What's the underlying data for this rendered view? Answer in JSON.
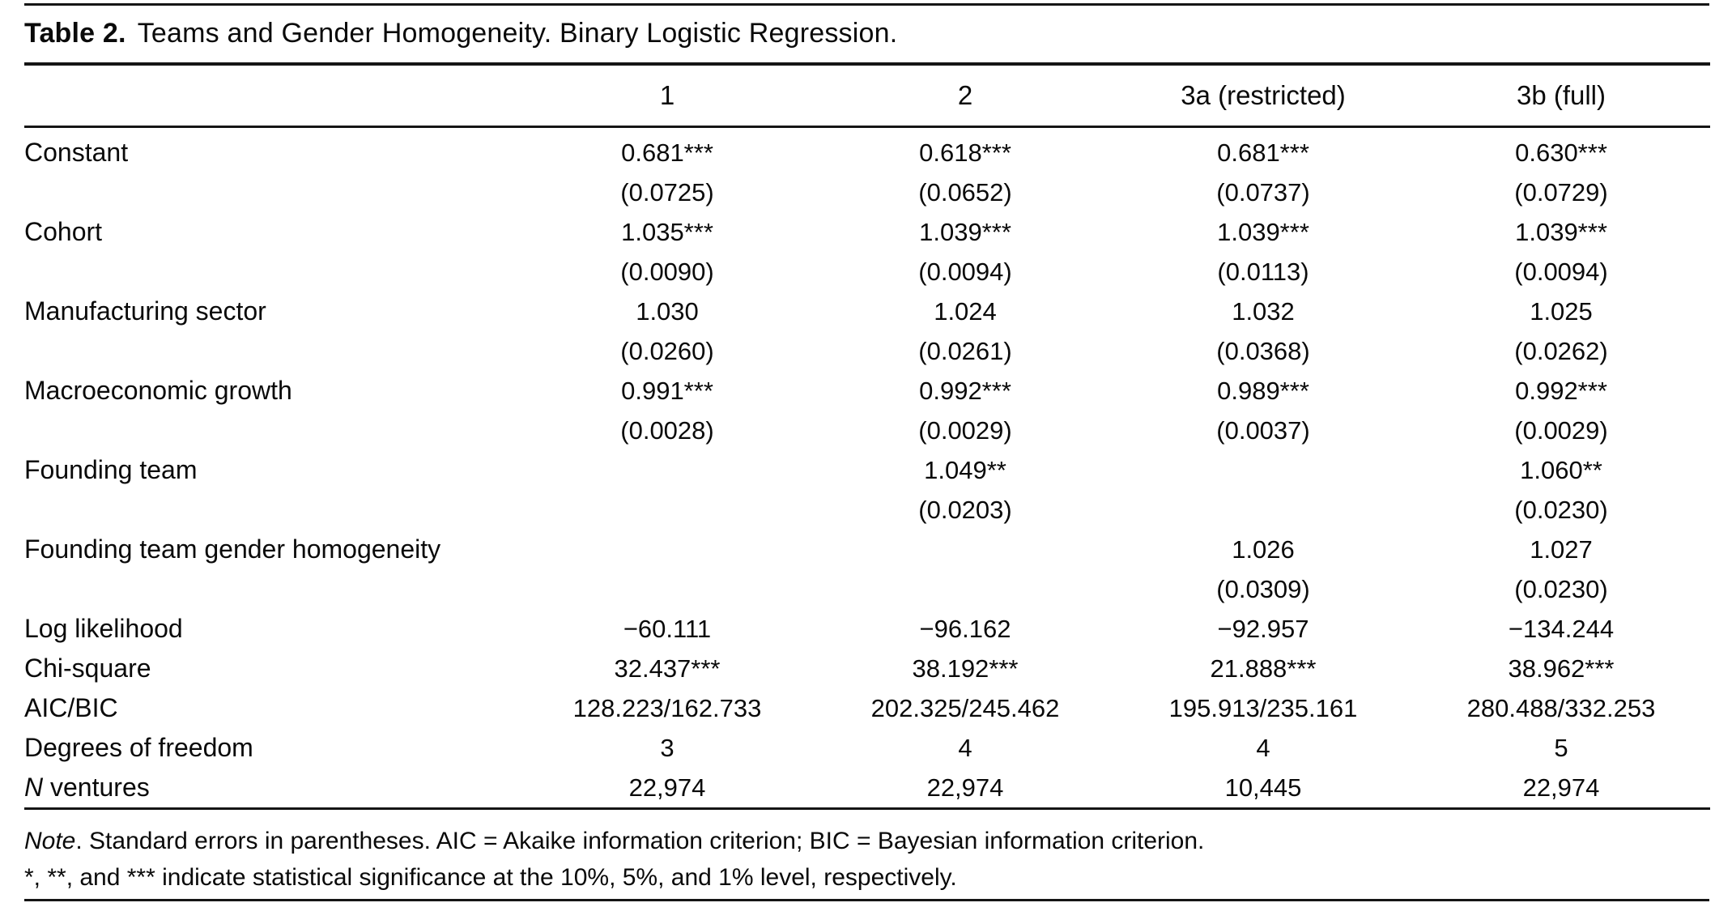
{
  "colors": {
    "background": "#ffffff",
    "text": "#0a0a0a",
    "rule": "#151515"
  },
  "table": {
    "title_label": "Table 2.",
    "title_text": "Teams and Gender Homogeneity. Binary Logistic Regression.",
    "columns": [
      "1",
      "2",
      "3a (restricted)",
      "3b (full)"
    ],
    "coef_rows": [
      {
        "label": "Constant",
        "est": [
          "0.681***",
          "0.618***",
          "0.681***",
          "0.630***"
        ],
        "se": [
          "(0.0725)",
          "(0.0652)",
          "(0.0737)",
          "(0.0729)"
        ]
      },
      {
        "label": "Cohort",
        "est": [
          "1.035***",
          "1.039***",
          "1.039***",
          "1.039***"
        ],
        "se": [
          "(0.0090)",
          "(0.0094)",
          "(0.0113)",
          "(0.0094)"
        ]
      },
      {
        "label": "Manufacturing sector",
        "est": [
          "1.030",
          "1.024",
          "1.032",
          "1.025"
        ],
        "se": [
          "(0.0260)",
          "(0.0261)",
          "(0.0368)",
          "(0.0262)"
        ]
      },
      {
        "label": "Macroeconomic growth",
        "est": [
          "0.991***",
          "0.992***",
          "0.989***",
          "0.992***"
        ],
        "se": [
          "(0.0028)",
          "(0.0029)",
          "(0.0037)",
          "(0.0029)"
        ]
      },
      {
        "label": "Founding team",
        "est": [
          "",
          "1.049**",
          "",
          "1.060**"
        ],
        "se": [
          "",
          "(0.0203)",
          "",
          "(0.0230)"
        ]
      },
      {
        "label": "Founding team gender homogeneity",
        "est": [
          "",
          "",
          "1.026",
          "1.027"
        ],
        "se": [
          "",
          "",
          "(0.0309)",
          "(0.0230)"
        ]
      }
    ],
    "stat_rows": [
      {
        "label": "Log likelihood",
        "values": [
          "−60.111",
          "−96.162",
          "−92.957",
          "−134.244"
        ]
      },
      {
        "label": "Chi-square",
        "values": [
          "32.437***",
          "38.192***",
          "21.888***",
          "38.962***"
        ]
      },
      {
        "label": "AIC/BIC",
        "values": [
          "128.223/162.733",
          "202.325/245.462",
          "195.913/235.161",
          "280.488/332.253"
        ]
      },
      {
        "label": "Degrees of freedom",
        "values": [
          "3",
          "4",
          "4",
          "5"
        ]
      },
      {
        "label": "N ventures",
        "italic_prefix": "N",
        "label_rest": " ventures",
        "values": [
          "22,974",
          "22,974",
          "10,445",
          "22,974"
        ]
      }
    ]
  },
  "notes": {
    "line1_italic": "Note",
    "line1_rest": ". Standard errors in parentheses. AIC = Akaike information criterion; BIC = Bayesian information criterion.",
    "line2": "*, **, and *** indicate statistical significance at the 10%, 5%, and 1% level, respectively."
  }
}
